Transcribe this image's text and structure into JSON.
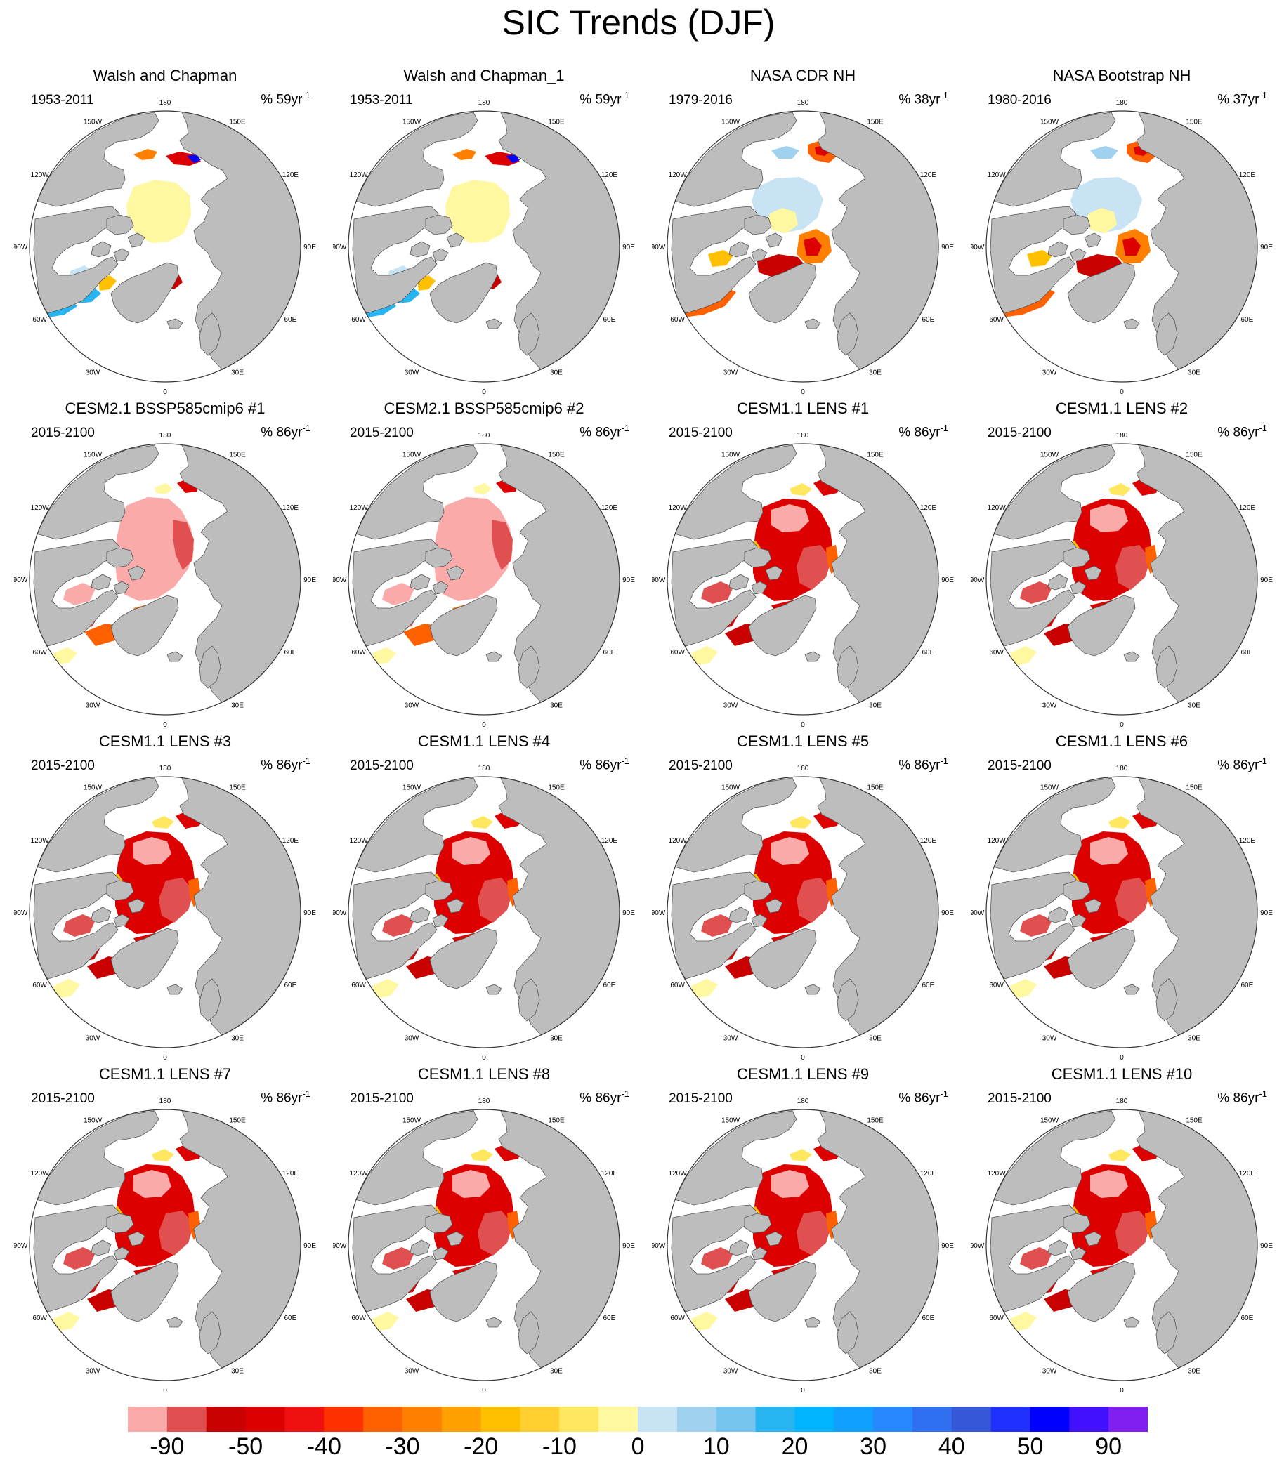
{
  "title": "SIC Trends (DJF)",
  "colors": {
    "land": "#bdbdbd",
    "ocean": "#ffffff",
    "outline": "#555555"
  },
  "lon_labels": [
    "180",
    "150E",
    "120E",
    "90E",
    "60E",
    "30E",
    "0",
    "30W",
    "60W",
    "90W",
    "120W",
    "150W"
  ],
  "panels": [
    {
      "title": "Walsh and Chapman",
      "period": "1953-2011",
      "units": "% 59yr",
      "style": "obs"
    },
    {
      "title": "Walsh and Chapman_1",
      "period": "1953-2011",
      "units": "% 59yr",
      "style": "obs"
    },
    {
      "title": "NASA CDR NH",
      "period": "1979-2016",
      "units": "% 38yr",
      "style": "sat"
    },
    {
      "title": "NASA Bootstrap NH",
      "period": "1980-2016",
      "units": "% 37yr",
      "style": "sat"
    },
    {
      "title": "CESM2.1 BSSP585cmip6 #1",
      "period": "2015-2100",
      "units": "% 86yr",
      "style": "cesm2"
    },
    {
      "title": "CESM2.1 BSSP585cmip6 #2",
      "period": "2015-2100",
      "units": "% 86yr",
      "style": "cesm2"
    },
    {
      "title": "CESM1.1 LENS #1",
      "period": "2015-2100",
      "units": "% 86yr",
      "style": "lens"
    },
    {
      "title": "CESM1.1 LENS #2",
      "period": "2015-2100",
      "units": "% 86yr",
      "style": "lens"
    },
    {
      "title": "CESM1.1 LENS #3",
      "period": "2015-2100",
      "units": "% 86yr",
      "style": "lens"
    },
    {
      "title": "CESM1.1 LENS #4",
      "period": "2015-2100",
      "units": "% 86yr",
      "style": "lens"
    },
    {
      "title": "CESM1.1 LENS #5",
      "period": "2015-2100",
      "units": "% 86yr",
      "style": "lens"
    },
    {
      "title": "CESM1.1 LENS #6",
      "period": "2015-2100",
      "units": "% 86yr",
      "style": "lens"
    },
    {
      "title": "CESM1.1 LENS #7",
      "period": "2015-2100",
      "units": "% 86yr",
      "style": "lens"
    },
    {
      "title": "CESM1.1 LENS #8",
      "period": "2015-2100",
      "units": "% 86yr",
      "style": "lens"
    },
    {
      "title": "CESM1.1 LENS #9",
      "period": "2015-2100",
      "units": "% 86yr",
      "style": "lens"
    },
    {
      "title": "CESM1.1 LENS #10",
      "period": "2015-2100",
      "units": "% 86yr",
      "style": "lens"
    }
  ],
  "unit_superscript": "-1",
  "colorbar": {
    "colors": [
      "#fbaaaa",
      "#e05050",
      "#c80000",
      "#dc0000",
      "#f01010",
      "#ff3000",
      "#ff6000",
      "#ff8000",
      "#ffa000",
      "#ffc000",
      "#ffd030",
      "#ffe860",
      "#fff8a0",
      "#c8e4f4",
      "#a0d2f0",
      "#78c4f0",
      "#28b4f0",
      "#00b4ff",
      "#10a0ff",
      "#2888ff",
      "#3070f0",
      "#3458d8",
      "#2030ff",
      "#0000ff",
      "#4010ff",
      "#8020f0"
    ],
    "labels": [
      {
        "text": "-90",
        "index": 1
      },
      {
        "text": "-50",
        "index": 3
      },
      {
        "text": "-40",
        "index": 5
      },
      {
        "text": "-30",
        "index": 7
      },
      {
        "text": "-20",
        "index": 9
      },
      {
        "text": "-10",
        "index": 11
      },
      {
        "text": "0",
        "index": 13
      },
      {
        "text": "10",
        "index": 15
      },
      {
        "text": "20",
        "index": 17
      },
      {
        "text": "30",
        "index": 19
      },
      {
        "text": "40",
        "index": 21
      },
      {
        "text": "50",
        "index": 23
      },
      {
        "text": "90",
        "index": 25
      }
    ]
  }
}
